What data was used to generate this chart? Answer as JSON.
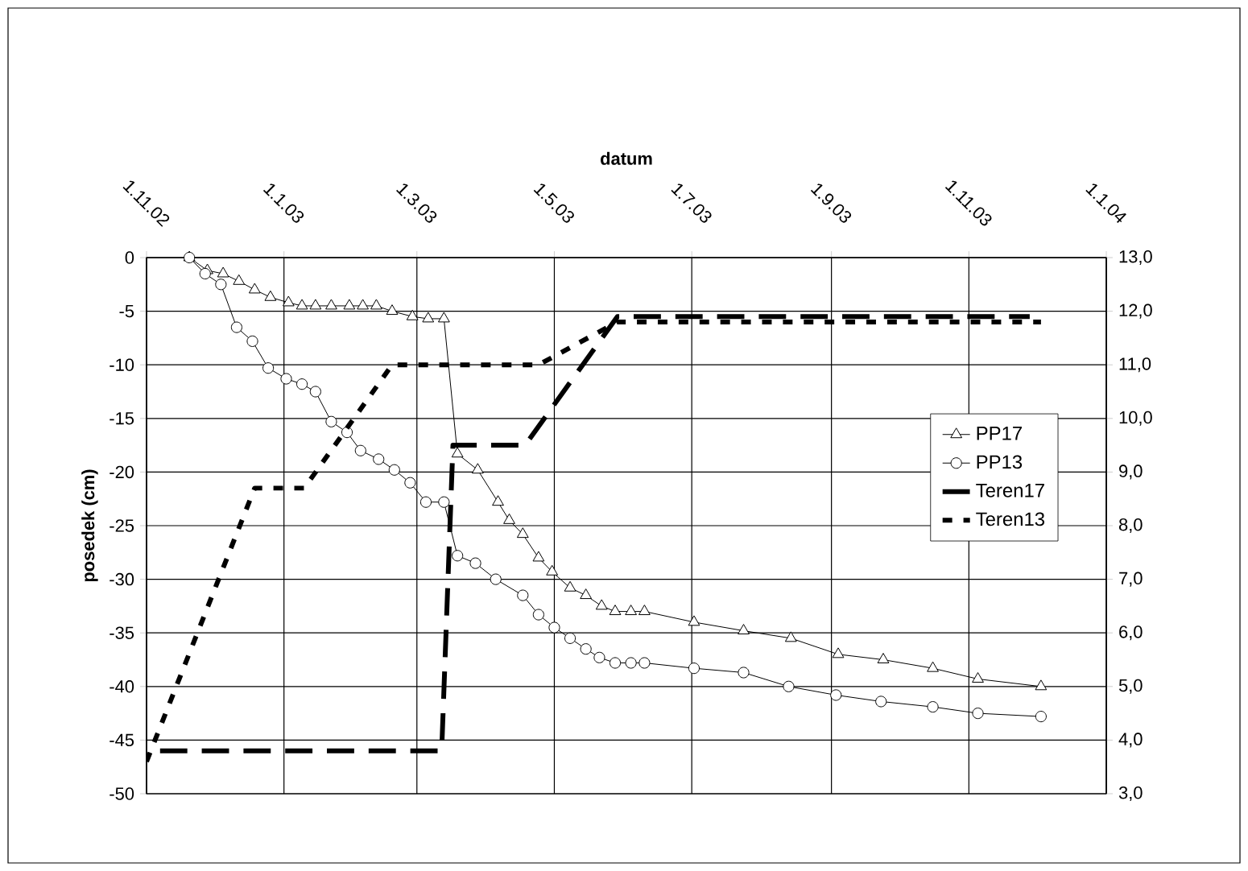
{
  "chart_data": {
    "type": "line",
    "xlabel": "datum",
    "ylabel": "posedek (cm)",
    "xlim": [
      "2002-11-01",
      "2004-01-01"
    ],
    "xticks": [
      {
        "value": "2002-11-01",
        "label": "1.11.02"
      },
      {
        "value": "2003-01-01",
        "label": "1.1.03"
      },
      {
        "value": "2003-03-01",
        "label": "1.3.03"
      },
      {
        "value": "2003-05-01",
        "label": "1.5.03"
      },
      {
        "value": "2003-07-01",
        "label": "1.7.03"
      },
      {
        "value": "2003-09-01",
        "label": "1.9.03"
      },
      {
        "value": "2003-11-01",
        "label": "1.11.03"
      },
      {
        "value": "2004-01-01",
        "label": "1.1.04"
      }
    ],
    "ylim": [
      -50,
      0
    ],
    "yticks": [
      0,
      -5,
      -10,
      -15,
      -20,
      -25,
      -30,
      -35,
      -40,
      -45,
      -50
    ],
    "y2lim": [
      3,
      13
    ],
    "y2ticks": [
      {
        "value": 13,
        "label": "13,0"
      },
      {
        "value": 12,
        "label": "12,0"
      },
      {
        "value": 11,
        "label": "11,0"
      },
      {
        "value": 10,
        "label": "10,0"
      },
      {
        "value": 9,
        "label": "9,0"
      },
      {
        "value": 8,
        "label": "8,0"
      },
      {
        "value": 7,
        "label": "7,0"
      },
      {
        "value": 6,
        "label": "6,0"
      },
      {
        "value": 5,
        "label": "5,0"
      },
      {
        "value": 4,
        "label": "4,0"
      },
      {
        "value": 3,
        "label": "3,0"
      }
    ],
    "grid": true,
    "legend": "right",
    "series": [
      {
        "name": "PP17",
        "color": "#000000",
        "marker": "triangle",
        "line_style": "solid",
        "x": [
          "2002-11-20",
          "2002-11-28",
          "2002-12-05",
          "2002-12-12",
          "2002-12-19",
          "2002-12-26",
          "2003-01-03",
          "2003-01-09",
          "2003-01-15",
          "2003-01-22",
          "2003-01-30",
          "2003-02-05",
          "2003-02-11",
          "2003-02-18",
          "2003-02-27",
          "2003-03-06",
          "2003-03-13",
          "2003-03-19",
          "2003-03-28",
          "2003-04-06",
          "2003-04-11",
          "2003-04-17",
          "2003-04-24",
          "2003-04-30",
          "2003-05-08",
          "2003-05-15",
          "2003-05-22",
          "2003-05-28",
          "2003-06-04",
          "2003-06-10",
          "2003-07-02",
          "2003-07-24",
          "2003-08-14",
          "2003-09-04",
          "2003-09-24",
          "2003-10-16",
          "2003-11-05",
          "2003-12-03"
        ],
        "values": [
          0,
          -1.2,
          -1.5,
          -2.2,
          -3,
          -3.7,
          -4.2,
          -4.5,
          -4.5,
          -4.5,
          -4.5,
          -4.5,
          -4.5,
          -5,
          -5.5,
          -5.7,
          -5.7,
          -18.3,
          -19.8,
          -22.8,
          -24.5,
          -25.8,
          -28,
          -29.3,
          -30.8,
          -31.5,
          -32.5,
          -33,
          -33,
          -33,
          -34,
          -34.8,
          -35.5,
          -37,
          -37.5,
          -38.3,
          -39.3,
          -40
        ]
      },
      {
        "name": "PP13",
        "color": "#000000",
        "marker": "circle",
        "line_style": "solid",
        "x": [
          "2002-11-20",
          "2002-11-27",
          "2002-12-04",
          "2002-12-11",
          "2002-12-18",
          "2002-12-25",
          "2003-01-02",
          "2003-01-09",
          "2003-01-15",
          "2003-01-22",
          "2003-01-29",
          "2003-02-04",
          "2003-02-12",
          "2003-02-19",
          "2003-02-26",
          "2003-03-05",
          "2003-03-13",
          "2003-03-19",
          "2003-03-27",
          "2003-04-05",
          "2003-04-17",
          "2003-04-24",
          "2003-05-01",
          "2003-05-08",
          "2003-05-15",
          "2003-05-21",
          "2003-05-28",
          "2003-06-04",
          "2003-06-10",
          "2003-07-02",
          "2003-07-24",
          "2003-08-13",
          "2003-09-03",
          "2003-09-23",
          "2003-10-16",
          "2003-11-05",
          "2003-12-03"
        ],
        "values": [
          0,
          -1.5,
          -2.5,
          -6.5,
          -7.8,
          -10.3,
          -11.3,
          -11.8,
          -12.5,
          -15.3,
          -16.3,
          -18,
          -18.8,
          -19.8,
          -21,
          -22.8,
          -22.8,
          -27.8,
          -28.5,
          -30,
          -31.5,
          -33.3,
          -34.5,
          -35.5,
          -36.5,
          -37.3,
          -37.8,
          -37.8,
          -37.8,
          -38.3,
          -38.7,
          -40,
          -40.8,
          -41.4,
          -41.9,
          -42.5,
          -42.8
        ]
      },
      {
        "name": "Teren17",
        "color": "#000000",
        "marker": "none",
        "line_style": "dashed",
        "axis": "y2",
        "x": [
          "2002-11-07",
          "2003-03-12",
          "2003-03-17",
          "2003-04-18",
          "2003-05-29",
          "2003-11-28"
        ],
        "values": [
          3.8,
          3.8,
          9.5,
          9.5,
          11.9,
          11.9
        ]
      },
      {
        "name": "Teren13",
        "color": "#000000",
        "marker": "none",
        "line_style": "dotted",
        "axis": "y2",
        "x": [
          "2002-11-01",
          "2002-12-19",
          "2003-01-10",
          "2003-02-18",
          "2003-04-24",
          "2003-05-29",
          "2003-12-03"
        ],
        "values": [
          3.6,
          8.7,
          8.7,
          11.0,
          11.0,
          11.8,
          11.8
        ]
      }
    ]
  }
}
